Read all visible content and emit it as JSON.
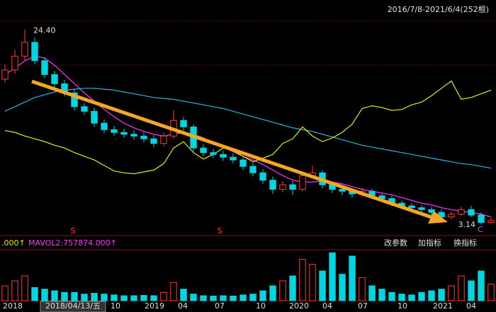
{
  "header": {
    "range": "2016/7/8-2021/6/4(252根)"
  },
  "chart_data": {
    "type": "candlestick",
    "open": [
      19.0,
      20.0,
      21.5,
      23.0,
      21.0,
      19.5,
      18.5,
      17.5,
      16.0,
      15.5,
      14.2,
      13.5,
      13.2,
      13.0,
      12.8,
      12.5,
      12.0,
      12.8,
      14.5,
      13.8,
      11.5,
      11.0,
      10.8,
      10.5,
      10.2,
      9.5,
      8.8,
      8.0,
      7.0,
      7.5,
      7.0,
      8.5,
      8.8,
      7.5,
      7.0,
      6.8,
      6.5,
      6.8,
      6.3,
      6.0,
      5.5,
      5.2,
      5.0,
      4.8,
      4.5,
      4.0,
      4.3,
      4.8,
      4.2,
      3.4
    ],
    "high": [
      20.6,
      22.2,
      24.4,
      23.5,
      21.4,
      19.9,
      18.9,
      17.9,
      16.4,
      15.9,
      14.6,
      13.9,
      13.6,
      13.4,
      13.2,
      12.9,
      13.2,
      15.6,
      14.9,
      14.1,
      11.9,
      11.4,
      11.2,
      10.9,
      10.6,
      9.9,
      9.2,
      8.4,
      7.9,
      7.9,
      8.9,
      9.6,
      9.1,
      7.8,
      7.3,
      7.1,
      7.2,
      7.1,
      6.6,
      6.3,
      5.8,
      5.5,
      5.3,
      5.1,
      4.8,
      4.6,
      5.1,
      5.2,
      4.5,
      3.9
    ],
    "low": [
      18.6,
      19.6,
      21.0,
      20.6,
      19.1,
      18.1,
      17.1,
      15.6,
      15.1,
      13.8,
      13.1,
      12.8,
      12.6,
      12.4,
      12.1,
      11.6,
      11.7,
      12.5,
      13.4,
      11.1,
      10.6,
      10.4,
      10.1,
      9.8,
      9.1,
      8.4,
      7.6,
      6.5,
      6.7,
      6.4,
      6.8,
      8.2,
      7.1,
      6.6,
      6.4,
      6.1,
      6.2,
      6.0,
      5.7,
      5.2,
      4.9,
      4.7,
      4.5,
      4.2,
      3.7,
      3.8,
      4.1,
      4.0,
      3.14,
      3.3
    ],
    "close": [
      20.0,
      21.5,
      23.0,
      21.0,
      19.5,
      18.5,
      17.5,
      16.0,
      15.5,
      14.2,
      13.5,
      13.2,
      13.0,
      12.8,
      12.5,
      12.0,
      12.8,
      14.5,
      13.8,
      11.5,
      11.0,
      10.8,
      10.5,
      10.2,
      9.5,
      8.8,
      8.0,
      7.0,
      7.5,
      7.0,
      8.5,
      8.8,
      7.5,
      7.0,
      6.8,
      6.5,
      6.8,
      6.3,
      6.0,
      5.5,
      5.2,
      5.0,
      4.8,
      4.5,
      4.0,
      4.3,
      4.8,
      4.2,
      3.4,
      3.6
    ],
    "high_value_labels": [
      null,
      null,
      "24.40",
      null,
      null,
      null,
      null,
      null,
      null,
      null,
      null,
      null,
      null,
      null,
      null,
      null,
      null,
      null,
      null,
      null,
      null,
      null,
      null,
      null,
      null,
      null,
      null,
      null,
      null,
      null,
      null,
      null,
      null,
      null,
      null,
      null,
      null,
      null,
      null,
      null,
      null,
      null,
      null,
      null,
      null,
      null,
      null,
      null,
      null,
      null
    ],
    "ylim": [
      2.2,
      25.3
    ],
    "up_color": "#ff3c3c",
    "down_color": "#00d5e0",
    "overlay": {
      "color": "#e8e800",
      "values": [
        13.4,
        13.2,
        12.8,
        12.5,
        12.2,
        11.8,
        11.5,
        11.0,
        10.6,
        10.2,
        9.6,
        9.0,
        8.8,
        8.7,
        8.9,
        9.1,
        9.8,
        11.5,
        12.2,
        11.0,
        10.3,
        10.8,
        11.5,
        11.2,
        10.6,
        10.0,
        10.4,
        10.8,
        12.0,
        12.5,
        13.8,
        12.8,
        12.2,
        12.6,
        13.2,
        14.1,
        15.8,
        16.1,
        15.9,
        15.6,
        15.7,
        16.2,
        16.5,
        17.2,
        18.0,
        18.8,
        16.8,
        17.0,
        17.4,
        17.8
      ]
    },
    "ma_lines": [
      {
        "color": "#ff33ff",
        "values": [
          19.5,
          20.2,
          21.0,
          21.5,
          21.3,
          20.5,
          19.5,
          18.5,
          17.5,
          16.6,
          15.7,
          14.9,
          14.2,
          13.7,
          13.3,
          13.0,
          12.8,
          13.0,
          13.2,
          13.0,
          12.6,
          12.1,
          11.6,
          11.1,
          10.6,
          10.2,
          9.7,
          9.1,
          8.5,
          8.0,
          7.8,
          7.8,
          7.9,
          7.8,
          7.6,
          7.3,
          7.0,
          6.8,
          6.6,
          6.4,
          6.1,
          5.8,
          5.5,
          5.3,
          5.0,
          4.8,
          4.6,
          4.5,
          4.3,
          4.0
        ]
      },
      {
        "color": "#29b6d6",
        "values": [
          15.5,
          16.0,
          16.5,
          17.0,
          17.3,
          17.6,
          17.8,
          17.9,
          18.0,
          18.0,
          17.9,
          17.8,
          17.6,
          17.4,
          17.2,
          17.0,
          16.9,
          16.8,
          16.6,
          16.4,
          16.2,
          16.0,
          15.8,
          15.5,
          15.2,
          14.9,
          14.6,
          14.3,
          14.0,
          13.7,
          13.5,
          13.3,
          13.0,
          12.7,
          12.4,
          12.1,
          11.8,
          11.6,
          11.4,
          11.2,
          11.0,
          10.8,
          10.6,
          10.4,
          10.2,
          10.0,
          9.8,
          9.7,
          9.5,
          9.3
        ]
      }
    ],
    "volume": {
      "values": [
        900000,
        1200000,
        1500000,
        800000,
        700000,
        600000,
        500000,
        500000,
        400000,
        450000,
        400000,
        350000,
        300000,
        300000,
        320000,
        300000,
        500000,
        1100000,
        700000,
        400000,
        300000,
        280000,
        300000,
        280000,
        350000,
        400000,
        600000,
        900000,
        1200000,
        1500000,
        2500000,
        2200000,
        1800000,
        2900000,
        1600000,
        2700000,
        1400000,
        900000,
        700000,
        500000,
        400000,
        350000,
        500000,
        600000,
        700000,
        900000,
        1500000,
        1200000,
        1800000,
        1000000
      ],
      "ylim": [
        0,
        3000000
      ],
      "legend": [
        ".000↑",
        "MAVOL2:757874.000↑"
      ]
    },
    "x_labels": [
      "2018",
      "10",
      "2019",
      "04",
      "07",
      "10",
      "2020",
      "04",
      "07",
      "10",
      "2021",
      "04"
    ],
    "cursor_label": "2018/04/13/五",
    "signals": [
      "S",
      "S",
      "C"
    ]
  },
  "buttons": [
    "改参数",
    "加指标",
    "换指标"
  ]
}
